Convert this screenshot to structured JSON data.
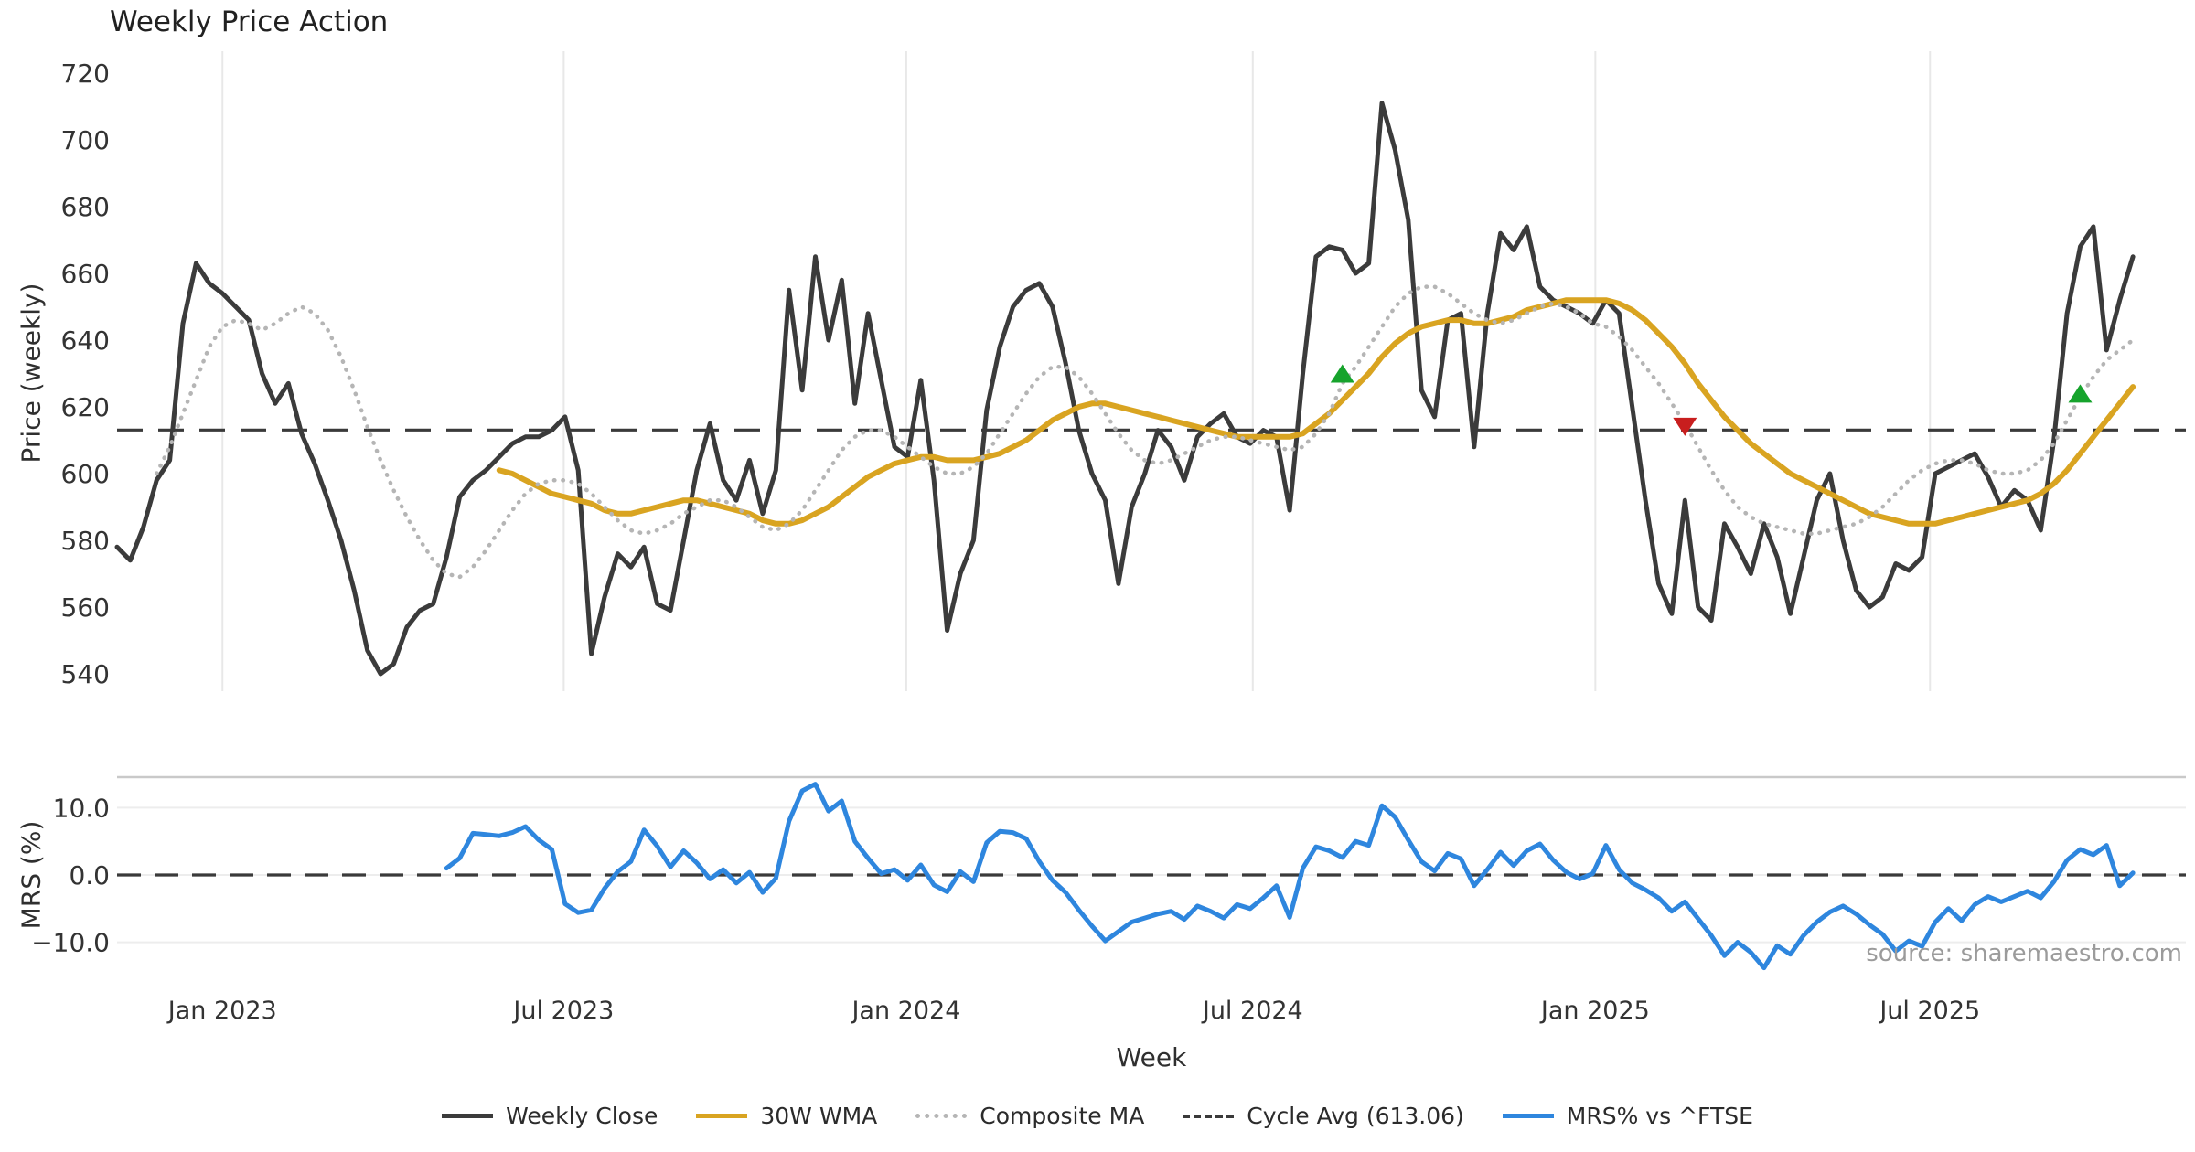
{
  "title": "Weekly Price Action",
  "source_note": "source: sharemaestro.com",
  "legend": {
    "items": [
      {
        "label": "Weekly Close",
        "color": "#3b3b3b",
        "style": "solid"
      },
      {
        "label": "30W WMA",
        "color": "#d9a421",
        "style": "solid"
      },
      {
        "label": "Composite MA",
        "color": "#b5b5b5",
        "style": "dotted"
      },
      {
        "label": "Cycle Avg (613.06)",
        "color": "#3a3a3a",
        "style": "dashed"
      },
      {
        "label": "MRS% vs ^FTSE",
        "color": "#2e86de",
        "style": "solid"
      }
    ]
  },
  "chart_data": {
    "type": "line",
    "title": "Weekly Price Action",
    "xlabel": "Week",
    "x_tick_labels": [
      "Jan 2023",
      "Jul 2023",
      "Jan 2024",
      "Jul 2024",
      "Jan 2025",
      "Jul 2025"
    ],
    "x_tick_weeks": [
      8.0,
      33.9,
      59.9,
      86.2,
      112.2,
      137.6
    ],
    "price_axis": {
      "label": "Price (weekly)",
      "ticks": [
        720,
        700,
        680,
        660,
        640,
        620,
        600,
        580,
        560,
        540
      ],
      "ylim": [
        533,
        727
      ],
      "grid": "vertical-only"
    },
    "mrs_axis": {
      "label": "MRS (%)",
      "ticks": [
        "10.0",
        "0.0",
        "−10.0"
      ],
      "tick_values": [
        10.0,
        0.0,
        -10.0
      ],
      "ylim": [
        -14.6,
        14.5
      ],
      "zero_line": "dashed"
    },
    "cycle_avg": 613.06,
    "series": [
      {
        "name": "Weekly Close",
        "axis": "price",
        "color": "#3b3b3b",
        "width": 5,
        "dash": "solid",
        "start_week": 0,
        "values": [
          578,
          574,
          584,
          598,
          604,
          645,
          663,
          657,
          654,
          650,
          646,
          630,
          621,
          627,
          612,
          603,
          592,
          580,
          565,
          547,
          540,
          543,
          554,
          559,
          561,
          575,
          593,
          598,
          601,
          605,
          609,
          611,
          611,
          613,
          617,
          601,
          546,
          563,
          576,
          572,
          578,
          561,
          559,
          580,
          601,
          615,
          598,
          592,
          604,
          588,
          601,
          655,
          625,
          665,
          640,
          658,
          621,
          648,
          628,
          608,
          605,
          628,
          598,
          553,
          570,
          580,
          619,
          638,
          650,
          655,
          657,
          650,
          633,
          613,
          600,
          592,
          567,
          590,
          600,
          613,
          608,
          598,
          611,
          615,
          618,
          611,
          609,
          613,
          611,
          589,
          630,
          665,
          668,
          667,
          660,
          663,
          711,
          697,
          676,
          625,
          617,
          646,
          648,
          608,
          648,
          672,
          667,
          674,
          656,
          652,
          650,
          648,
          645,
          652,
          648,
          620,
          592,
          567,
          558,
          592,
          560,
          556,
          585,
          578,
          570,
          585,
          575,
          558,
          575,
          592,
          600,
          580,
          565,
          560,
          563,
          573,
          571,
          575,
          600,
          602,
          604,
          606,
          599,
          590,
          595,
          592,
          583,
          610,
          648,
          668,
          674,
          637,
          652,
          665
        ]
      },
      {
        "name": "30W WMA",
        "axis": "price",
        "color": "#d9a421",
        "width": 6,
        "dash": "solid",
        "start_week": 29,
        "values": [
          601,
          600,
          598,
          596,
          594,
          593,
          592,
          591,
          589,
          588,
          588,
          589,
          590,
          591,
          592,
          592,
          591,
          590,
          589,
          588,
          586,
          585,
          585,
          586,
          588,
          590,
          593,
          596,
          599,
          601,
          603,
          604,
          605,
          605,
          604,
          604,
          604,
          605,
          606,
          608,
          610,
          613,
          616,
          618,
          620,
          621,
          621,
          620,
          619,
          618,
          617,
          616,
          615,
          614,
          613,
          612,
          611,
          611,
          611,
          611,
          611,
          612,
          615,
          618,
          622,
          626,
          630,
          635,
          639,
          642,
          644,
          645,
          646,
          646,
          645,
          645,
          646,
          647,
          649,
          650,
          651,
          652,
          652,
          652,
          652,
          651,
          649,
          646,
          642,
          638,
          633,
          627,
          622,
          617,
          613,
          609,
          606,
          603,
          600,
          598,
          596,
          594,
          592,
          590,
          588,
          587,
          586,
          585,
          585,
          585,
          586,
          587,
          588,
          589,
          590,
          591,
          592,
          594,
          597,
          601,
          606,
          611,
          616,
          621,
          626
        ]
      },
      {
        "name": "Composite MA",
        "axis": "price",
        "color": "#b5b5b5",
        "width": 4.5,
        "dash": "dotted",
        "start_week": 3,
        "values": [
          600,
          608,
          618,
          628,
          638,
          644,
          646,
          645,
          643,
          645,
          648,
          650,
          648,
          643,
          635,
          625,
          614,
          604,
          595,
          587,
          580,
          574,
          570,
          569,
          572,
          577,
          583,
          589,
          594,
          597,
          598,
          598,
          597,
          594,
          590,
          586,
          583,
          582,
          583,
          585,
          588,
          590,
          592,
          592,
          590,
          587,
          584,
          583,
          585,
          589,
          595,
          601,
          607,
          611,
          613,
          613,
          611,
          608,
          605,
          602,
          600,
          600,
          602,
          606,
          612,
          618,
          624,
          629,
          632,
          632,
          629,
          624,
          618,
          612,
          607,
          604,
          603,
          604,
          606,
          608,
          610,
          611,
          611,
          610,
          609,
          608,
          607,
          608,
          612,
          618,
          627,
          632,
          638,
          644,
          650,
          654,
          656,
          656,
          654,
          651,
          648,
          646,
          645,
          646,
          648,
          650,
          651,
          650,
          648,
          645,
          644,
          641,
          637,
          632,
          627,
          621,
          615,
          608,
          601,
          595,
          590,
          587,
          585,
          584,
          583,
          582,
          582,
          583,
          584,
          585,
          587,
          590,
          594,
          598,
          601,
          603,
          604,
          604,
          603,
          601,
          600,
          600,
          601,
          604,
          609,
          616,
          623,
          629,
          634,
          637,
          640
        ]
      },
      {
        "name": "MRS% vs ^FTSE",
        "axis": "mrs",
        "color": "#2e86de",
        "width": 5,
        "dash": "solid",
        "start_week": 25,
        "values": [
          1.0,
          2.5,
          6.2,
          6.0,
          5.8,
          6.3,
          7.2,
          5.2,
          3.8,
          -4.3,
          -5.6,
          -5.2,
          -2.0,
          0.5,
          2.0,
          6.7,
          4.3,
          1.2,
          3.6,
          1.8,
          -0.6,
          0.8,
          -1.2,
          0.4,
          -2.6,
          -0.5,
          8.0,
          12.5,
          13.5,
          9.5,
          11.0,
          5.0,
          2.5,
          0.2,
          0.8,
          -0.8,
          1.5,
          -1.5,
          -2.5,
          0.5,
          -1.0,
          4.8,
          6.5,
          6.3,
          5.4,
          2.0,
          -0.8,
          -2.6,
          -5.2,
          -7.6,
          -9.8,
          -8.4,
          -7.0,
          -6.4,
          -5.8,
          -5.4,
          -6.6,
          -4.6,
          -5.4,
          -6.4,
          -4.4,
          -5.0,
          -3.4,
          -1.6,
          -6.3,
          1.0,
          4.2,
          3.6,
          2.6,
          5.0,
          4.4,
          10.3,
          8.6,
          5.2,
          2.0,
          0.6,
          3.2,
          2.4,
          -1.6,
          0.8,
          3.4,
          1.4,
          3.6,
          4.6,
          2.2,
          0.4,
          -0.6,
          0.2,
          4.4,
          0.8,
          -1.2,
          -2.2,
          -3.4,
          -5.4,
          -4.0,
          -6.5,
          -9.0,
          -12.0,
          -10.0,
          -11.5,
          -13.8,
          -10.5,
          -11.8,
          -9.0,
          -7.0,
          -5.5,
          -4.6,
          -5.8,
          -7.4,
          -8.8,
          -11.3,
          -9.8,
          -10.6,
          -7.0,
          -5.0,
          -6.8,
          -4.4,
          -3.2,
          -4.0,
          -3.2,
          -2.4,
          -3.4,
          -1.0,
          2.2,
          3.8,
          3.0,
          4.4,
          -1.6,
          0.3
        ]
      }
    ],
    "markers": [
      {
        "type": "buy-signal",
        "shape": "triangle-up",
        "color": "#16a32c",
        "week": 93,
        "price": 630
      },
      {
        "type": "sell-signal",
        "shape": "triangle-down",
        "color": "#c81e1e",
        "week": 119,
        "price": 614
      },
      {
        "type": "buy-signal",
        "shape": "triangle-up",
        "color": "#16a32c",
        "week": 149,
        "price": 624
      }
    ],
    "legend_position": "bottom-center",
    "source": "source: sharemaestro.com"
  }
}
